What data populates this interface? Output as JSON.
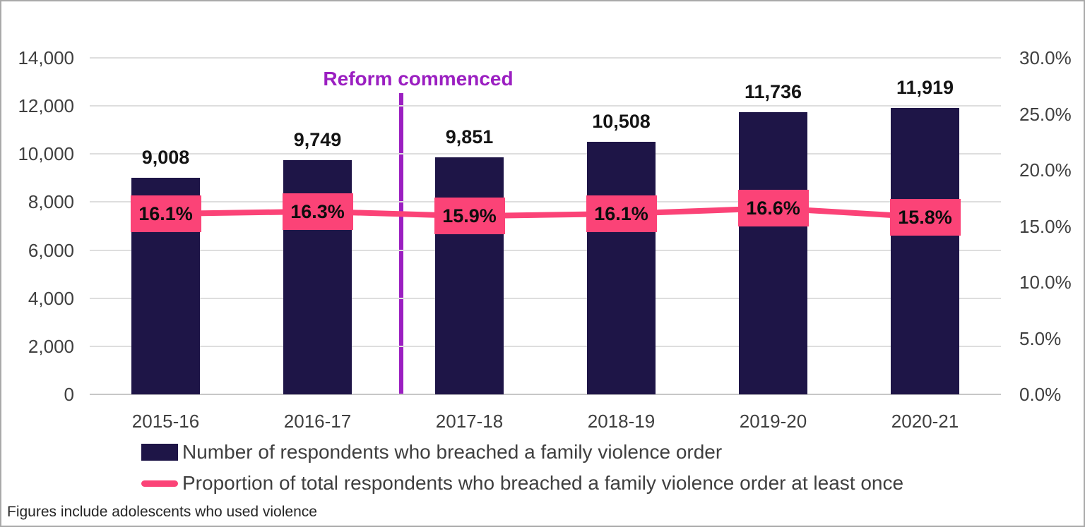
{
  "chart_data": {
    "type": "bar",
    "combo": "bar+line",
    "categories": [
      "2015-16",
      "2016-17",
      "2017-18",
      "2018-19",
      "2019-20",
      "2020-21"
    ],
    "series": [
      {
        "name": "Number of respondents who breached a family violence order",
        "type": "bar",
        "axis": "left",
        "color": "#1e1547",
        "values": [
          9008,
          9749,
          9851,
          10508,
          11736,
          11919
        ],
        "labels": [
          "9,008",
          "9,749",
          "9,851",
          "10,508",
          "11,736",
          "11,919"
        ]
      },
      {
        "name": "Proportion of total respondents who breached a family violence order at least once",
        "type": "line",
        "axis": "right",
        "color": "#fb4377",
        "values": [
          16.1,
          16.3,
          15.9,
          16.1,
          16.6,
          15.8
        ],
        "labels": [
          "16.1%",
          "16.3%",
          "15.9%",
          "16.1%",
          "16.6%",
          "15.8%"
        ]
      }
    ],
    "left_axis": {
      "min": 0,
      "max": 14000,
      "ticks": [
        {
          "label": "0",
          "value": 0
        },
        {
          "label": "2,000",
          "value": 2000
        },
        {
          "label": "4,000",
          "value": 4000
        },
        {
          "label": "6,000",
          "value": 6000
        },
        {
          "label": "8,000",
          "value": 8000
        },
        {
          "label": "10,000",
          "value": 10000
        },
        {
          "label": "12,000",
          "value": 12000
        },
        {
          "label": "14,000",
          "value": 14000
        }
      ]
    },
    "right_axis": {
      "min": 0,
      "max": 30,
      "ticks": [
        {
          "label": "0.0%",
          "value": 0
        },
        {
          "label": "5.0%",
          "value": 5
        },
        {
          "label": "10.0%",
          "value": 10
        },
        {
          "label": "15.0%",
          "value": 15
        },
        {
          "label": "20.0%",
          "value": 20
        },
        {
          "label": "25.0%",
          "value": 25
        },
        {
          "label": "30.0%",
          "value": 30
        }
      ]
    },
    "annotation": {
      "text": "Reform commenced",
      "color": "#9b1fc1",
      "between_categories": [
        "2016-17",
        "2017-18"
      ]
    },
    "grid": true,
    "legend_position": "bottom-left",
    "footnote": "Figures include adolescents who used violence"
  }
}
